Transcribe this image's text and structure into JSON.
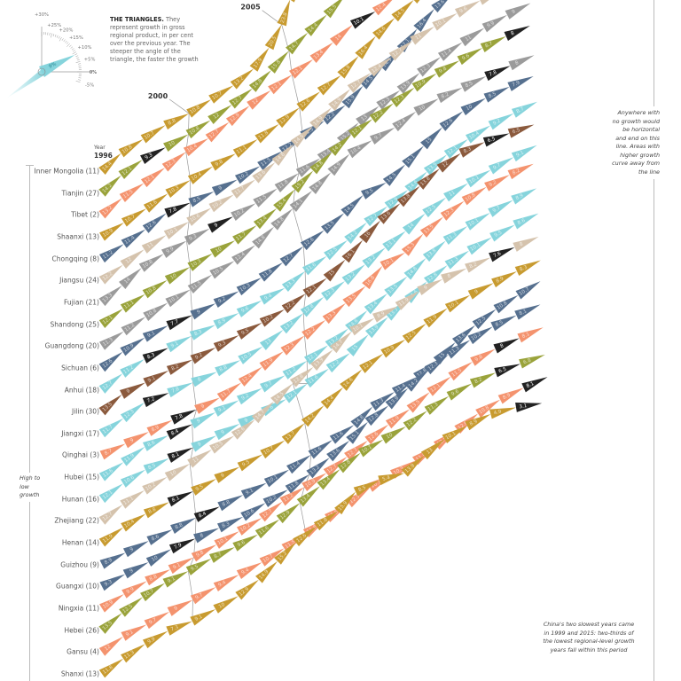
{
  "legend": {
    "title": "THE TRIANGLES.",
    "text": "They represent growth in gross regional product, in per cent over the previous year. The steeper the angle of the triangle, the faster the growth",
    "gauge_ticks": [
      "+30%",
      "+25%",
      "+20%",
      "+15%",
      "+10%",
      "+5%",
      "0%",
      "-5%"
    ],
    "example_value": "9%"
  },
  "annotations": {
    "right": "Anywhere with no growth would be horizontal and end on this line. Areas with higher growth curve away from the line",
    "bottom": "China's two slowest years came in 1999 and 2015: two-thirds of the lowest regional-level growth years fall within this period",
    "left": "High to low growth",
    "year_caption": "Year"
  },
  "colors": {
    "gold": "#c89b30",
    "olive": "#9aa33b",
    "salmon": "#f4936e",
    "blue": "#56708f",
    "tan": "#d5c3ad",
    "gray": "#9b9b9b",
    "cyan": "#86d4dc",
    "brown": "#8b5a3d",
    "lowest": "#222222"
  },
  "chart_data": {
    "type": "line",
    "years": [
      1996,
      1997,
      1998,
      1999,
      2000,
      2001,
      2002,
      2003,
      2004,
      2005,
      2006,
      2007,
      2008,
      2009,
      2010,
      2011,
      2012,
      2013,
      2014,
      2015
    ],
    "year_markers": [
      "1996",
      "2000",
      "2005"
    ],
    "unit": "% growth in gross regional product over previous year",
    "encoding": "angle of each triangle = growth; black = region's slowest year",
    "series": [
      {
        "name": "Inner Mongolia (11)",
        "color": "gold",
        "values": [
          14.4,
          10.8,
          10.7,
          8.8,
          10.8,
          10.7,
          13.2,
          17.9,
          20.5,
          23.8,
          19.1,
          19.2,
          17.8,
          16.9,
          15.0,
          14.3,
          11.5,
          9.0,
          7.8,
          7.7
        ]
      },
      {
        "name": "Tianjin (27)",
        "color": "olive",
        "values": [
          14.2,
          12.1,
          9.3,
          10.0,
          10.8,
          12.0,
          12.7,
          14.8,
          15.8,
          14.7,
          14.4,
          15.5,
          16.5,
          16.5,
          17.4,
          16.4,
          13.8,
          12.5,
          10.0,
          9.3
        ]
      },
      {
        "name": "Tibet (2)",
        "color": "salmon",
        "values": [
          13.2,
          11.5,
          12.1,
          12.3,
          10.4,
          12.7,
          12.9,
          12.0,
          12.1,
          12.1,
          13.4,
          14.0,
          10.1,
          12.4,
          12.3,
          12.7,
          11.8,
          12.1,
          10.8,
          11.0
        ]
      },
      {
        "name": "Shaanxi (13)",
        "color": "gold",
        "values": [
          10.9,
          10.7,
          11.6,
          10.3,
          10.4,
          9.8,
          11.1,
          11.8,
          12.9,
          12.6,
          12.7,
          15.8,
          16.4,
          14.6,
          14.5,
          13.9,
          12.9,
          11.0,
          9.7,
          8.0
        ]
      },
      {
        "name": "Chongqing (8)",
        "color": "blue",
        "values": [
          11.2,
          11.4,
          12.6,
          7.8,
          8.5,
          9.0,
          10.2,
          11.5,
          12.2,
          11.5,
          12.2,
          15.9,
          14.5,
          14.9,
          17.1,
          16.4,
          13.6,
          12.3,
          10.9,
          11.0
        ]
      },
      {
        "name": "Jiangsu (24)",
        "color": "tan",
        "values": [
          12.2,
          12.0,
          11.0,
          10.1,
          10.6,
          10.2,
          11.7,
          13.6,
          14.8,
          14.5,
          14.9,
          14.9,
          12.7,
          12.4,
          12.7,
          11.0,
          10.1,
          9.6,
          8.7,
          8.5
        ]
      },
      {
        "name": "Fujian (21)",
        "color": "gray",
        "values": [
          13.3,
          14.0,
          10.8,
          9.9,
          9.3,
          9.0,
          10.2,
          11.5,
          11.8,
          11.6,
          13.4,
          15.2,
          13.0,
          12.3,
          13.9,
          12.3,
          11.4,
          11.0,
          9.9,
          9.0
        ]
      },
      {
        "name": "Shandong (25)",
        "color": "olive",
        "values": [
          12.1,
          11.1,
          10.8,
          10.0,
          10.3,
          10.0,
          11.7,
          13.4,
          15.4,
          15.2,
          14.8,
          14.2,
          12.1,
          12.2,
          12.3,
          10.9,
          9.8,
          9.6,
          8.7,
          8.0
        ]
      },
      {
        "name": "Guangdong (20)",
        "color": "gray",
        "values": [
          11.3,
          11.2,
          10.8,
          10.1,
          11.5,
          10.5,
          12.4,
          14.8,
          14.8,
          14.1,
          14.8,
          14.9,
          10.4,
          9.7,
          12.4,
          10.0,
          8.2,
          8.5,
          7.8,
          8.0
        ]
      },
      {
        "name": "Sichuan (6)",
        "color": "blue",
        "values": [
          12.6,
          10.9,
          9.1,
          7.7,
          9.0,
          9.2,
          10.3,
          11.8,
          12.7,
          12.6,
          13.5,
          14.5,
          9.5,
          14.5,
          15.1,
          15.0,
          12.6,
          10.0,
          8.5,
          7.9
        ]
      },
      {
        "name": "Anhui (18)",
        "color": "cyan",
        "values": [
          12.7,
          11.2,
          8.3,
          9.1,
          8.3,
          8.9,
          9.6,
          9.4,
          13.3,
          11.6,
          12.5,
          14.2,
          12.7,
          12.9,
          14.6,
          13.5,
          12.1,
          10.4,
          9.2,
          8.7
        ]
      },
      {
        "name": "Jilin (30)",
        "color": "brown",
        "values": [
          13.5,
          9.0,
          9.1,
          8.2,
          9.2,
          9.3,
          9.5,
          10.2,
          12.2,
          12.1,
          15.0,
          16.1,
          16.0,
          13.6,
          13.8,
          13.8,
          12.0,
          8.3,
          6.5,
          6.5
        ]
      },
      {
        "name": "Jiangxi (17)",
        "color": "cyan",
        "values": [
          11.7,
          12.3,
          7.2,
          7.8,
          8.0,
          8.8,
          10.5,
          13.0,
          13.2,
          12.8,
          12.3,
          13.2,
          13.2,
          13.1,
          14.0,
          12.5,
          11.0,
          10.1,
          9.7,
          9.1
        ]
      },
      {
        "name": "Qinghai (3)",
        "color": "salmon",
        "values": [
          8.7,
          9.0,
          8.9,
          7.8,
          9.0,
          11.7,
          12.4,
          11.9,
          12.3,
          12.2,
          13.3,
          13.5,
          16.8,
          10.1,
          15.3,
          13.5,
          12.3,
          10.8,
          9.2,
          8.2
        ]
      },
      {
        "name": "Hubei (15)",
        "color": "cyan",
        "values": [
          11.6,
          11.9,
          8.6,
          8.4,
          9.0,
          9.1,
          9.2,
          9.7,
          11.2,
          12.1,
          13.2,
          14.6,
          13.4,
          13.5,
          14.8,
          13.8,
          11.3,
          10.1,
          9.7,
          8.9
        ]
      },
      {
        "name": "Hunan (16)",
        "color": "cyan",
        "values": [
          12.1,
          10.6,
          8.5,
          8.1,
          9.0,
          9.0,
          9.0,
          9.6,
          12.1,
          11.6,
          12.2,
          15.0,
          13.9,
          13.7,
          14.6,
          12.8,
          11.3,
          10.1,
          9.5,
          8.6
        ]
      },
      {
        "name": "Zhejiang (22)",
        "color": "tan",
        "values": [
          12.7,
          11.1,
          10.2,
          10.0,
          11.0,
          10.5,
          12.6,
          14.7,
          14.5,
          12.8,
          13.9,
          14.7,
          10.1,
          8.9,
          11.9,
          9.0,
          8.0,
          8.2,
          7.6,
          8.0
        ]
      },
      {
        "name": "Henan (14)",
        "color": "gold",
        "values": [
          11.9,
          10.4,
          8.8,
          8.1,
          9.5,
          9.0,
          9.5,
          10.7,
          13.7,
          14.2,
          14.4,
          14.6,
          12.1,
          10.9,
          12.5,
          11.9,
          10.1,
          9.0,
          8.9,
          8.3
        ]
      },
      {
        "name": "Guizhou (9)",
        "color": "blue",
        "values": [
          8.9,
          9.0,
          8.6,
          8.8,
          8.4,
          8.8,
          9.1,
          10.1,
          11.4,
          11.6,
          11.6,
          14.8,
          11.3,
          11.4,
          12.8,
          15.0,
          13.6,
          12.5,
          10.8,
          10.7
        ]
      },
      {
        "name": "Guangxi (10)",
        "color": "blue",
        "values": [
          9.3,
          9.0,
          10.0,
          7.9,
          8.0,
          8.3,
          10.6,
          10.2,
          11.8,
          13.2,
          13.6,
          15.1,
          12.8,
          13.9,
          14.2,
          12.3,
          11.3,
          10.2,
          8.5,
          8.1
        ]
      },
      {
        "name": "Ningxia (11)",
        "color": "salmon",
        "values": [
          10.9,
          9.9,
          8.8,
          9.1,
          9.8,
          10.1,
          10.2,
          12.7,
          11.2,
          10.9,
          12.7,
          12.7,
          12.6,
          11.9,
          13.5,
          12.1,
          11.5,
          9.8,
          8.0,
          8.1
        ]
      },
      {
        "name": "Hebei (26)",
        "color": "olive",
        "values": [
          13.5,
          12.5,
          10.7,
          9.1,
          9.5,
          8.7,
          9.6,
          11.6,
          12.9,
          13.4,
          13.4,
          12.8,
          10.1,
          10.0,
          12.2,
          11.3,
          9.6,
          8.2,
          6.5,
          6.8
        ]
      },
      {
        "name": "Gansu (4)",
        "color": "salmon",
        "values": [
          12.0,
          9.1,
          9.7,
          9.0,
          9.7,
          9.4,
          9.4,
          10.7,
          11.5,
          11.8,
          11.5,
          12.3,
          10.1,
          10.3,
          11.8,
          12.5,
          12.6,
          10.8,
          8.9,
          8.1
        ]
      },
      {
        "name": "Shanxi (13)",
        "color": "gold",
        "values": [
          11.8,
          11.3,
          9.9,
          7.3,
          9.1,
          10.0,
          12.9,
          14.9,
          15.2,
          12.6,
          11.8,
          15.9,
          8.5,
          5.4,
          13.9,
          13.0,
          10.1,
          8.9,
          4.9,
          3.1
        ]
      }
    ]
  }
}
